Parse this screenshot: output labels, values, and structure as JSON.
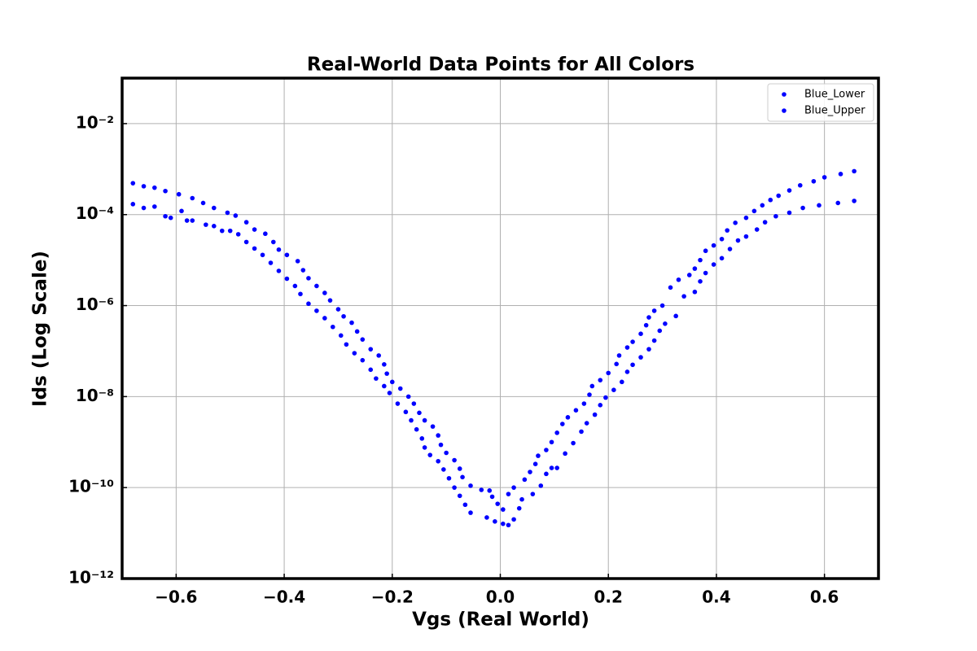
{
  "chart_data": {
    "type": "scatter",
    "title": "Real-World Data Points for All Colors",
    "xlabel": "Vgs (Real World)",
    "ylabel": "Ids (Log Scale)",
    "yscale": "log",
    "grid": true,
    "legend": "upper right",
    "xlim": [
      -0.7,
      0.7
    ],
    "ylim": [
      1e-12,
      0.1
    ],
    "xticks": [
      {
        "value": -0.6,
        "label": "−0.6"
      },
      {
        "value": -0.4,
        "label": "−0.4"
      },
      {
        "value": -0.2,
        "label": "−0.2"
      },
      {
        "value": 0,
        "label": "0.0"
      },
      0.2,
      0.4,
      0.6
    ],
    "yticks": [
      {
        "value": 1e-12,
        "label": "10⁻¹²"
      },
      {
        "value": 1e-10,
        "label": "10⁻¹⁰"
      },
      {
        "value": 1e-08,
        "label": "10⁻⁸"
      },
      {
        "value": 1e-06,
        "label": "10⁻⁶"
      },
      {
        "value": 0.0001,
        "label": "10⁻⁴"
      },
      {
        "value": 0.01,
        "label": "10⁻²"
      }
    ],
    "series": [
      {
        "name": "Blue_Lower",
        "color": "#0000ff",
        "x": [
          -0.68,
          -0.66,
          -0.64,
          -0.62,
          -0.61,
          -0.59,
          -0.58,
          -0.57,
          -0.545,
          -0.53,
          -0.515,
          -0.5,
          -0.485,
          -0.47,
          -0.455,
          -0.44,
          -0.425,
          -0.41,
          -0.395,
          -0.38,
          -0.37,
          -0.355,
          -0.34,
          -0.325,
          -0.31,
          -0.295,
          -0.285,
          -0.27,
          -0.255,
          -0.24,
          -0.23,
          -0.215,
          -0.205,
          -0.19,
          -0.175,
          -0.165,
          -0.155,
          -0.145,
          -0.14,
          -0.13,
          -0.115,
          -0.105,
          -0.095,
          -0.085,
          -0.075,
          -0.065,
          -0.055,
          -0.025,
          -0.01,
          0.005,
          0.015,
          0.025,
          0.045,
          0.055,
          0.065,
          0.07,
          0.085,
          0.095,
          0.105,
          0.115,
          0.125,
          0.14,
          0.155,
          0.165,
          0.17,
          0.185,
          0.2,
          0.215,
          0.22,
          0.235,
          0.245,
          0.26,
          0.27,
          0.275,
          0.285,
          0.3,
          0.315,
          0.33,
          0.35,
          0.36,
          0.37,
          0.38,
          0.395,
          0.41,
          0.42,
          0.435,
          0.455,
          0.47,
          0.485,
          0.5,
          0.515,
          0.535,
          0.555,
          0.58,
          0.6,
          0.63,
          0.655
        ],
        "values": [
          0.00017,
          0.00014,
          0.00015,
          9.2e-05,
          8.5e-05,
          0.00012,
          7.4e-05,
          7.4e-05,
          6e-05,
          5.6e-05,
          4.4e-05,
          4.4e-05,
          3.7e-05,
          2.5e-05,
          1.8e-05,
          1.3e-05,
          8.7e-06,
          5.8e-06,
          3.9e-06,
          2.7e-06,
          1.8e-06,
          1.1e-06,
          7.7e-07,
          5.3e-07,
          3.4e-07,
          2.2e-07,
          1.4e-07,
          9e-08,
          6.3e-08,
          3.9e-08,
          2.5e-08,
          1.7e-08,
          1.2e-08,
          7e-09,
          4.6e-09,
          3e-09,
          1.9e-09,
          1.2e-09,
          7.6e-10,
          5.2e-10,
          3.8e-10,
          2.5e-10,
          1.6e-10,
          1e-10,
          6.6e-11,
          4.2e-11,
          2.8e-11,
          2.2e-11,
          1.8e-11,
          1.6e-11,
          7.2e-11,
          1e-10,
          1.5e-10,
          2.2e-10,
          3.3e-10,
          5e-10,
          6.7e-10,
          1e-09,
          1.6e-09,
          2.5e-09,
          3.5e-09,
          5e-09,
          7e-09,
          1.1e-08,
          1.7e-08,
          2.3e-08,
          3.3e-08,
          5.2e-08,
          8e-08,
          1.2e-07,
          1.6e-07,
          2.4e-07,
          3.7e-07,
          5.5e-07,
          7.7e-07,
          1e-06,
          2.5e-06,
          3.7e-06,
          4.7e-06,
          6.5e-06,
          1e-05,
          1.6e-05,
          2.1e-05,
          2.9e-05,
          4.5e-05,
          6.6e-05,
          8.5e-05,
          0.00012,
          0.00016,
          0.00021,
          0.00026,
          0.00034,
          0.00044,
          0.00054,
          0.00066,
          0.00078,
          0.0009
        ]
      },
      {
        "name": "Blue_Upper",
        "color": "#0000ff",
        "x": [
          -0.68,
          -0.66,
          -0.64,
          -0.62,
          -0.595,
          -0.57,
          -0.55,
          -0.53,
          -0.505,
          -0.49,
          -0.47,
          -0.455,
          -0.435,
          -0.42,
          -0.41,
          -0.395,
          -0.375,
          -0.365,
          -0.355,
          -0.34,
          -0.325,
          -0.315,
          -0.3,
          -0.29,
          -0.275,
          -0.265,
          -0.255,
          -0.24,
          -0.225,
          -0.215,
          -0.21,
          -0.2,
          -0.185,
          -0.17,
          -0.16,
          -0.15,
          -0.14,
          -0.125,
          -0.115,
          -0.11,
          -0.1,
          -0.085,
          -0.075,
          -0.07,
          -0.055,
          -0.035,
          -0.02,
          -0.015,
          -0.005,
          0.005,
          0.015,
          0.025,
          0.035,
          0.04,
          0.06,
          0.075,
          0.085,
          0.095,
          0.105,
          0.12,
          0.135,
          0.15,
          0.16,
          0.175,
          0.185,
          0.195,
          0.21,
          0.225,
          0.235,
          0.245,
          0.26,
          0.275,
          0.285,
          0.295,
          0.305,
          0.325,
          0.34,
          0.36,
          0.37,
          0.38,
          0.395,
          0.41,
          0.425,
          0.44,
          0.455,
          0.475,
          0.49,
          0.51,
          0.535,
          0.56,
          0.59,
          0.625,
          0.655
        ],
        "values": [
          0.00049,
          0.00042,
          0.00039,
          0.00033,
          0.00028,
          0.00023,
          0.00018,
          0.00014,
          0.00011,
          9.5e-05,
          6.8e-05,
          4.7e-05,
          3.8e-05,
          2.5e-05,
          1.7e-05,
          1.3e-05,
          9.5e-06,
          6e-06,
          4e-06,
          2.7e-06,
          1.9e-06,
          1.3e-06,
          8.3e-07,
          5.8e-07,
          4.2e-07,
          2.7e-07,
          1.8e-07,
          1.1e-07,
          8e-08,
          5.1e-08,
          3.2e-08,
          2.1e-08,
          1.5e-08,
          1e-08,
          7e-09,
          4.4e-09,
          3e-09,
          2.2e-09,
          1.4e-09,
          8.7e-10,
          5.8e-10,
          4e-10,
          2.6e-10,
          1.7e-10,
          1.1e-10,
          8.9e-11,
          8.6e-11,
          6.3e-11,
          4.4e-11,
          3.3e-11,
          1.5e-11,
          2e-11,
          3.5e-11,
          5.5e-11,
          7.2e-11,
          1.1e-10,
          2e-10,
          2.7e-10,
          2.7e-10,
          5.6e-10,
          9.5e-10,
          1.7e-09,
          2.6e-09,
          4e-09,
          6.5e-09,
          9.5e-09,
          1.4e-08,
          2.1e-08,
          3.5e-08,
          5e-08,
          7.3e-08,
          1.1e-07,
          1.7e-07,
          2.8e-07,
          4e-07,
          5.9e-07,
          1.6e-06,
          2e-06,
          3.4e-06,
          5.2e-06,
          8e-06,
          1.1e-05,
          1.75e-05,
          2.7e-05,
          3.3e-05,
          4.7e-05,
          6.8e-05,
          9.2e-05,
          0.00011,
          0.00014,
          0.00016,
          0.00018,
          0.0002
        ]
      }
    ]
  }
}
